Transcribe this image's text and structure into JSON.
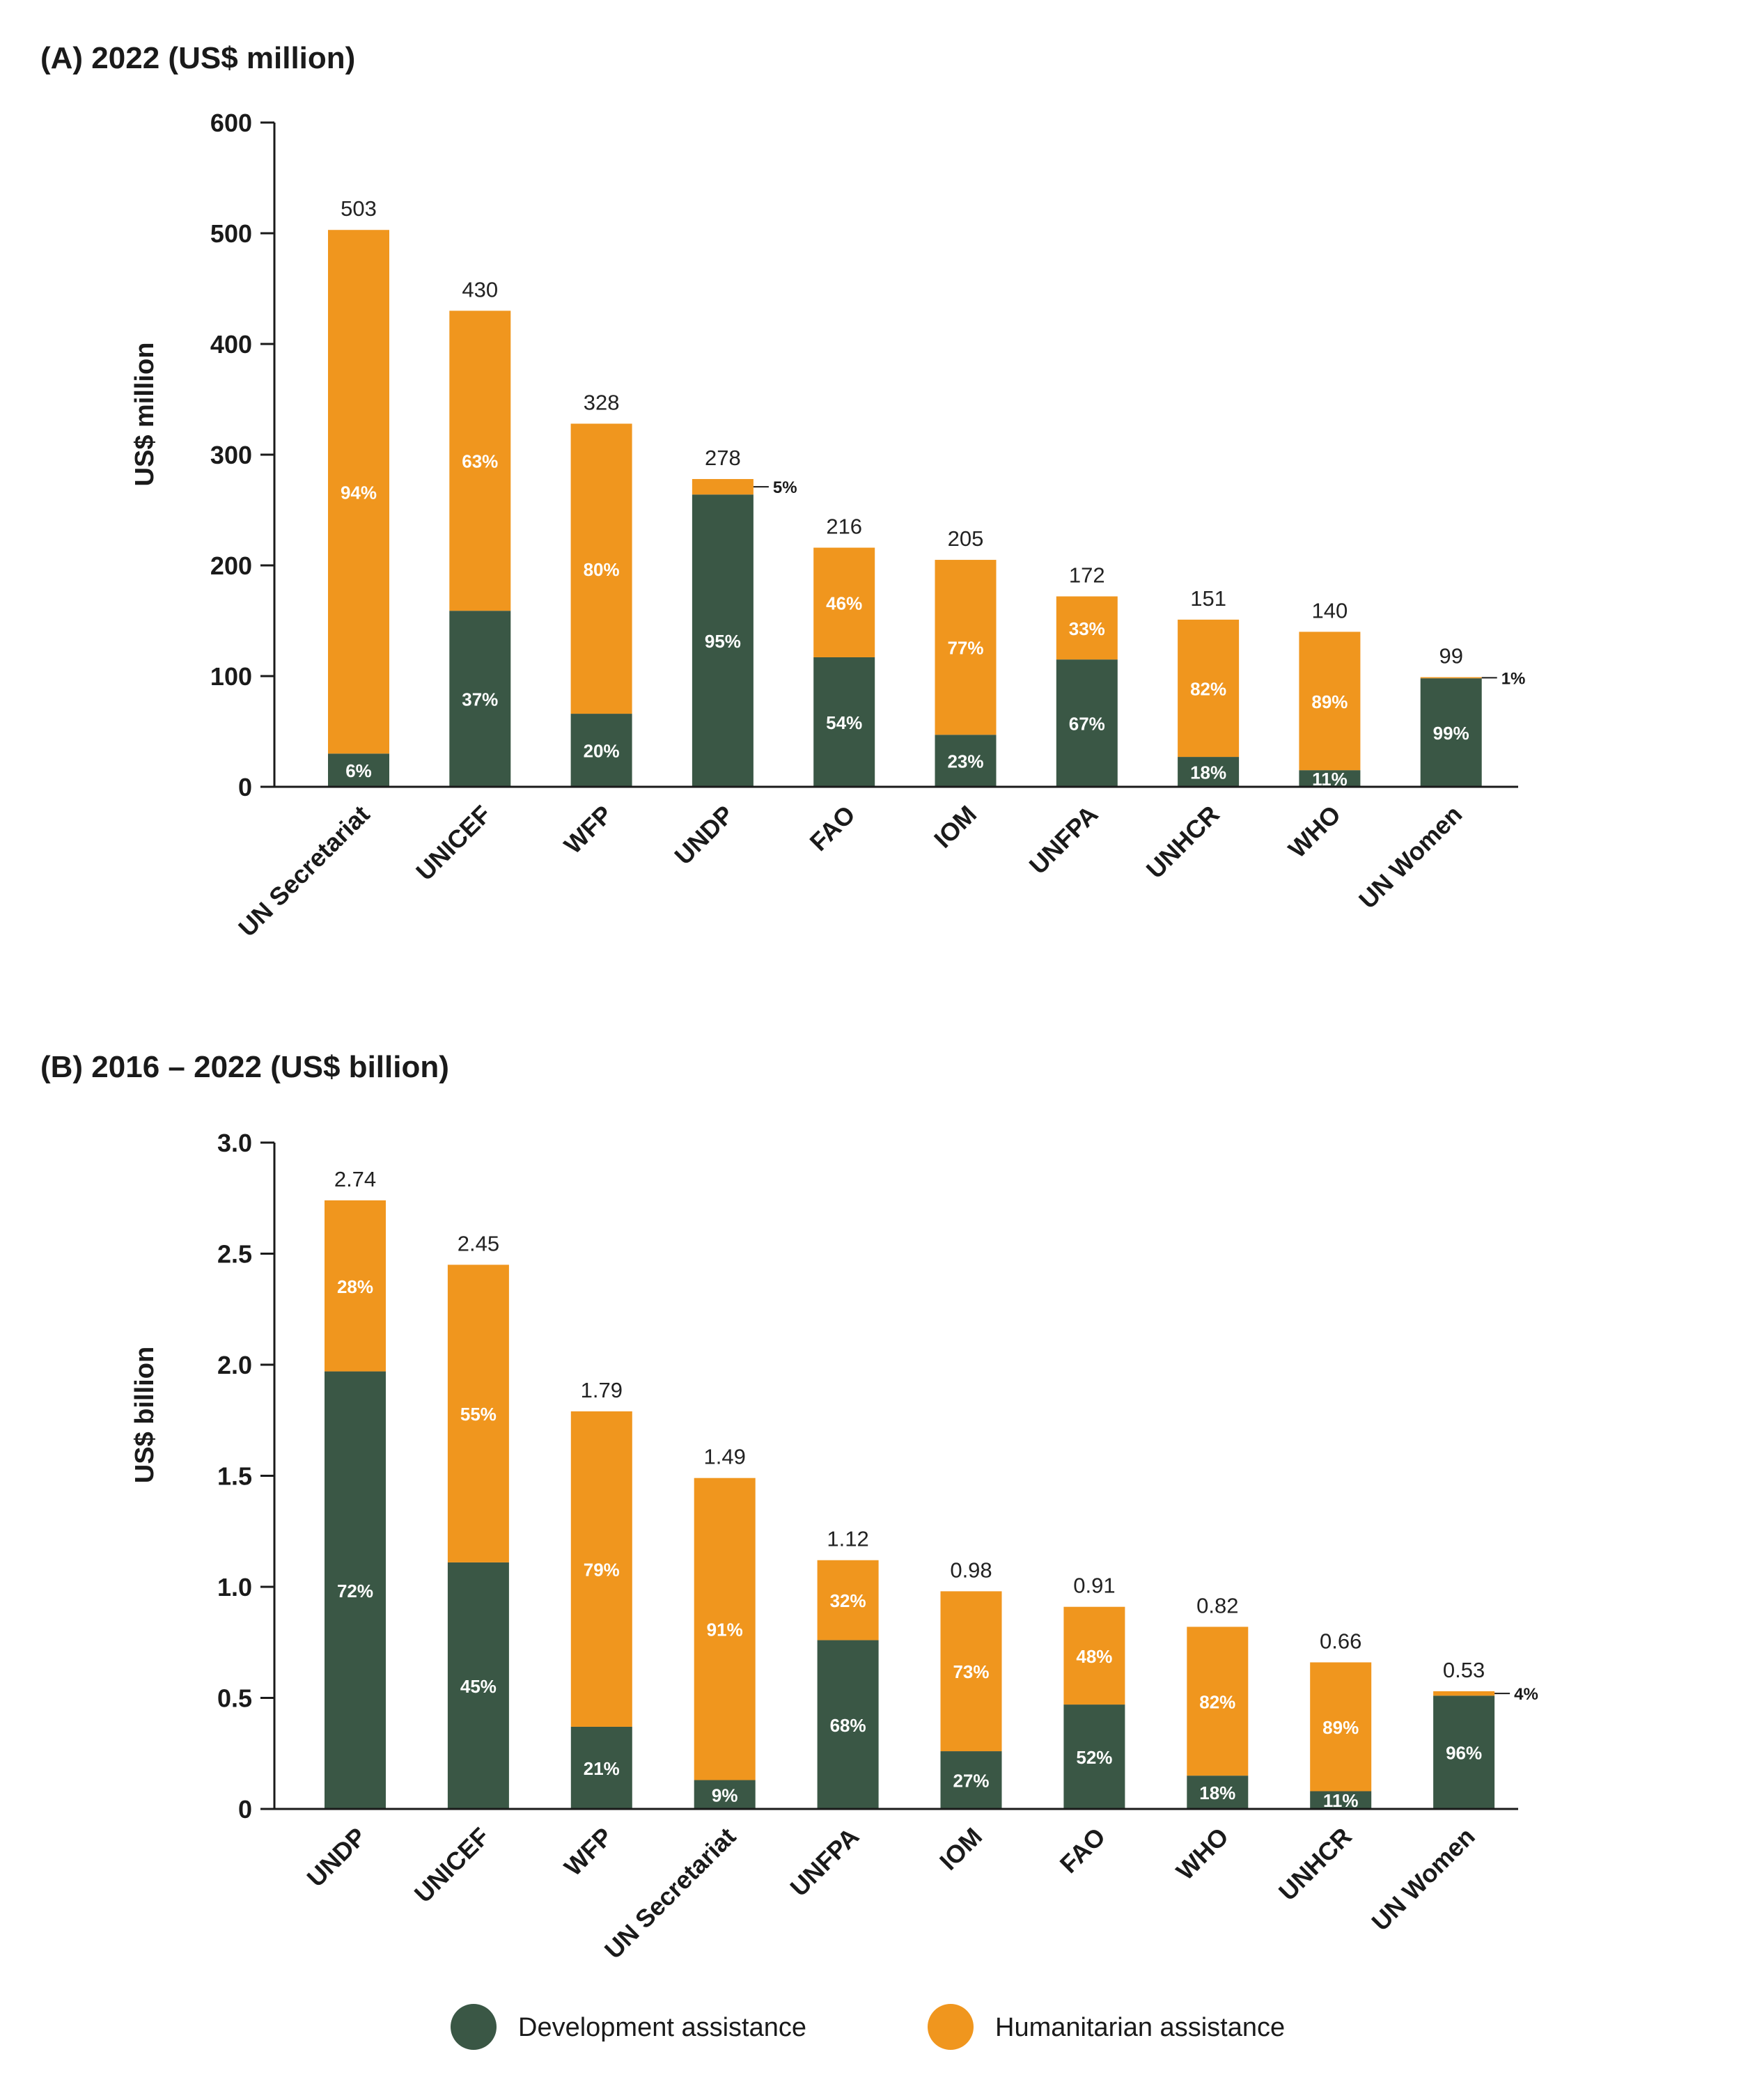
{
  "colors": {
    "development": "#3a5745",
    "humanitarian": "#f0961e",
    "axis": "#1a1a1a"
  },
  "legend": {
    "development_label": "Development assistance",
    "humanitarian_label": "Humanitarian assistance"
  },
  "chart_data": [
    {
      "type": "bar",
      "stacked": true,
      "title": "(A) 2022 (US$ million)",
      "ylabel": "US$ million",
      "xlabel": "",
      "ylim": [
        0,
        600
      ],
      "yticks": [
        0,
        100,
        200,
        300,
        400,
        500,
        600
      ],
      "ytick_labels": [
        "0",
        "100",
        "200",
        "300",
        "400",
        "500",
        "600"
      ],
      "categories": [
        "UN Secretariat",
        "UNICEF",
        "WFP",
        "UNDP",
        "FAO",
        "IOM",
        "UNFPA",
        "UNHCR",
        "WHO",
        "UN Women"
      ],
      "totals": [
        503,
        430,
        328,
        278,
        216,
        205,
        172,
        151,
        140,
        99
      ],
      "total_labels": [
        "503",
        "430",
        "328",
        "278",
        "216",
        "205",
        "172",
        "151",
        "140",
        "99"
      ],
      "series": [
        {
          "name": "Development assistance",
          "values": [
            30,
            159,
            66,
            264,
            117,
            47,
            115,
            27,
            15,
            98
          ],
          "pct_labels": [
            "6%",
            "37%",
            "20%",
            "95%",
            "54%",
            "23%",
            "67%",
            "18%",
            "11%",
            "99%"
          ]
        },
        {
          "name": "Humanitarian assistance",
          "values": [
            473,
            271,
            262,
            14,
            99,
            158,
            57,
            124,
            125,
            1
          ],
          "pct_labels": [
            "94%",
            "63%",
            "80%",
            "5%",
            "46%",
            "77%",
            "33%",
            "82%",
            "89%",
            "1%"
          ]
        }
      ]
    },
    {
      "type": "bar",
      "stacked": true,
      "title": "(B) 2016 – 2022 (US$ billion)",
      "ylabel": "US$ billion",
      "xlabel": "",
      "ylim": [
        0,
        3.0
      ],
      "yticks": [
        0,
        0.5,
        1.0,
        1.5,
        2.0,
        2.5,
        3.0
      ],
      "ytick_labels": [
        "0",
        "0.5",
        "1.0",
        "1.5",
        "2.0",
        "2.5",
        "3.0"
      ],
      "categories": [
        "UNDP",
        "UNICEF",
        "WFP",
        "UN Secretariat",
        "UNFPA",
        "IOM",
        "FAO",
        "WHO",
        "UNHCR",
        "UN Women"
      ],
      "totals": [
        2.74,
        2.45,
        1.79,
        1.49,
        1.12,
        0.98,
        0.91,
        0.82,
        0.66,
        0.53
      ],
      "total_labels": [
        "2.74",
        "2.45",
        "1.79",
        "1.49",
        "1.12",
        "0.98",
        "0.91",
        "0.82",
        "0.66",
        "0.53"
      ],
      "series": [
        {
          "name": "Development assistance",
          "values": [
            1.97,
            1.11,
            0.37,
            0.13,
            0.76,
            0.26,
            0.47,
            0.15,
            0.08,
            0.51
          ],
          "pct_labels": [
            "72%",
            "45%",
            "21%",
            "9%",
            "68%",
            "27%",
            "52%",
            "18%",
            "11%",
            "96%"
          ]
        },
        {
          "name": "Humanitarian assistance",
          "values": [
            0.77,
            1.34,
            1.42,
            1.36,
            0.36,
            0.72,
            0.44,
            0.67,
            0.58,
            0.02
          ],
          "pct_labels": [
            "28%",
            "55%",
            "79%",
            "91%",
            "32%",
            "73%",
            "48%",
            "82%",
            "89%",
            "4%"
          ]
        }
      ]
    }
  ]
}
